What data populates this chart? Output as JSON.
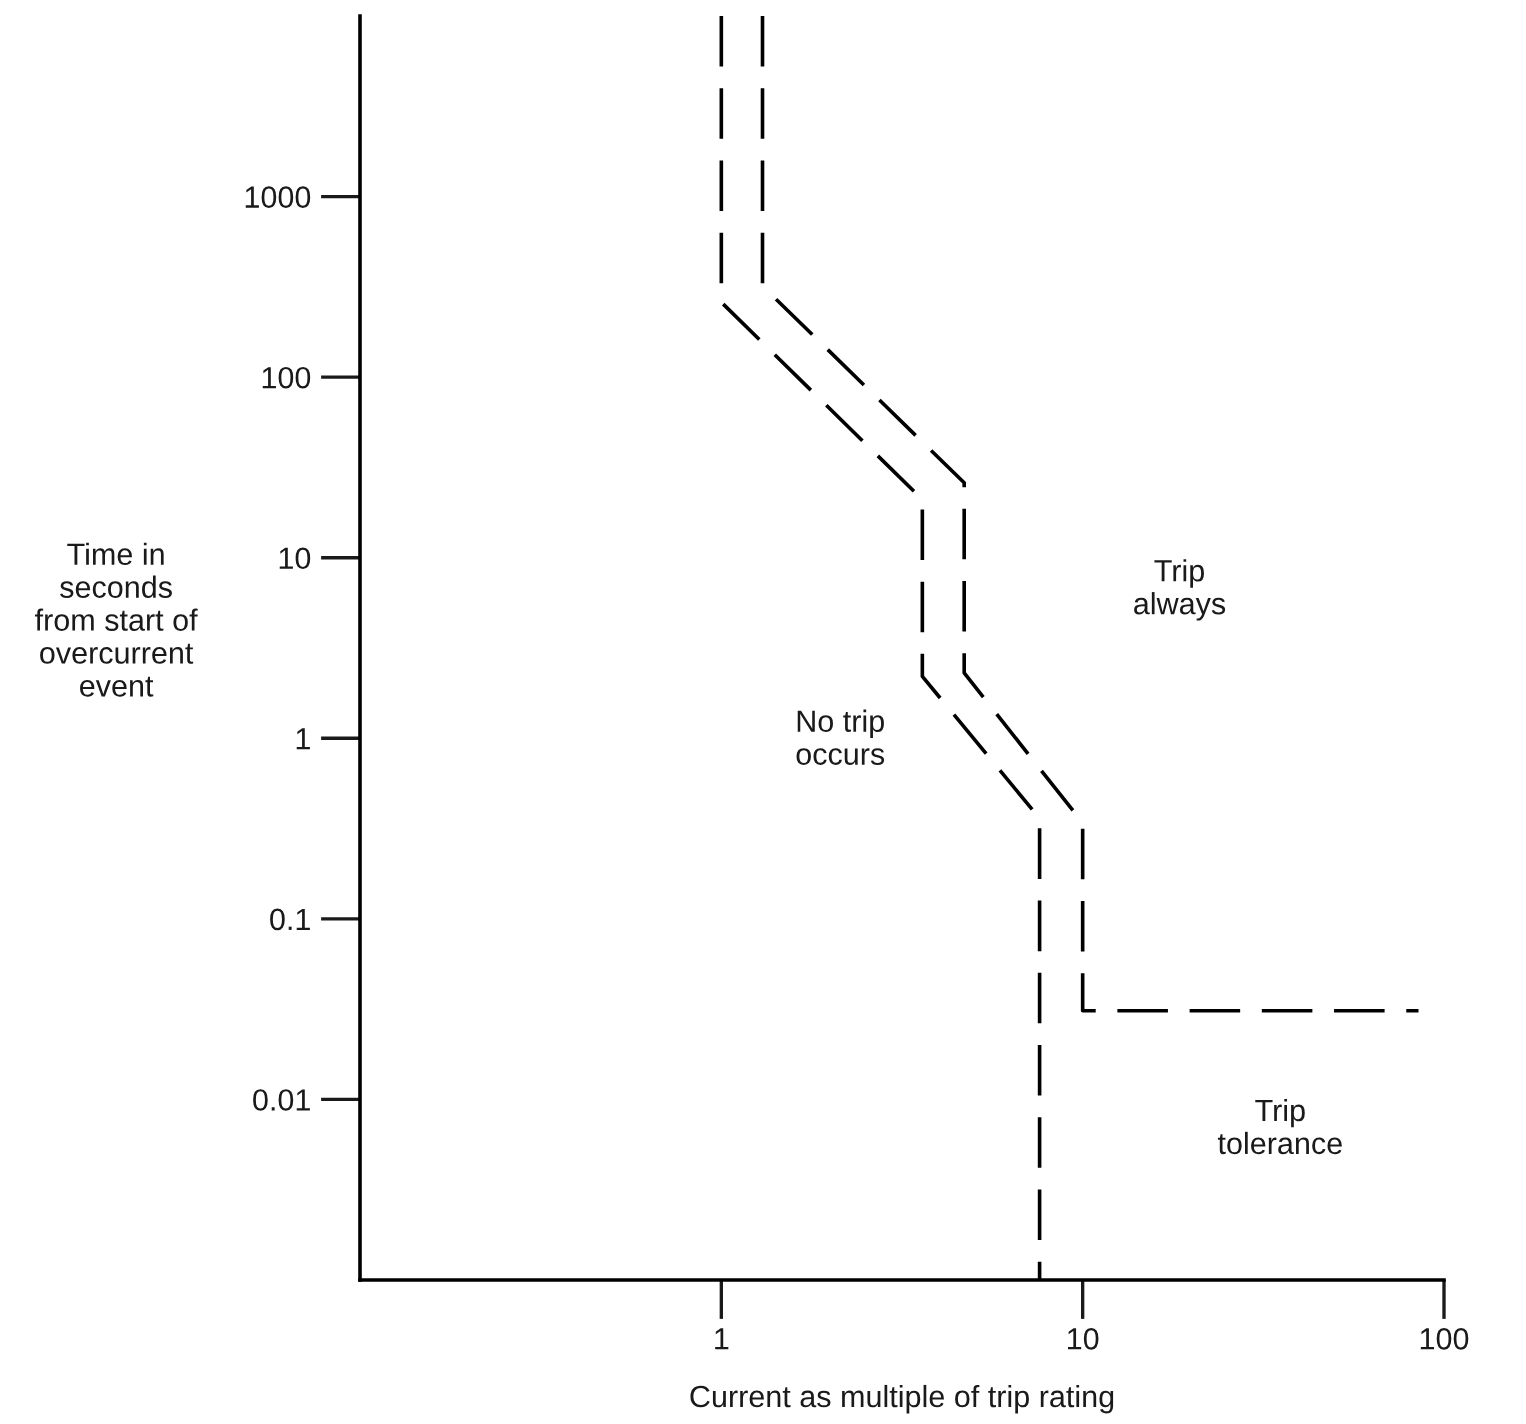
{
  "chart_data": {
    "type": "line",
    "xlabel": "Current as multiple of trip rating",
    "ylabel": "Time in\nseconds\nfrom start of\novercurrent\nevent",
    "log": "xy",
    "xlim": [
      0.1,
      100
    ],
    "ylim": [
      0.001,
      10000
    ],
    "xticks": [
      1,
      10,
      100
    ],
    "yticks": [
      0.01,
      0.1,
      1,
      10,
      100,
      1000
    ],
    "grid": false,
    "marker": "none",
    "line_style": "dashed",
    "series": [
      {
        "color": "#000000",
        "x": [
          1,
          1,
          3.6,
          3.6,
          7.6,
          7.6
        ],
        "values": [
          10000,
          260,
          21,
          2.2,
          0.36,
          0.001
        ]
      },
      {
        "color": "#000000",
        "x": [
          1.3,
          1.3,
          4.7,
          4.7,
          10,
          10,
          85
        ],
        "values": [
          10000,
          320,
          26,
          2.3,
          0.34,
          0.031,
          0.031
        ]
      }
    ],
    "annotations": [
      "No trip\noccurs",
      "Trip\nalways",
      "Trip\ntolerance"
    ]
  }
}
